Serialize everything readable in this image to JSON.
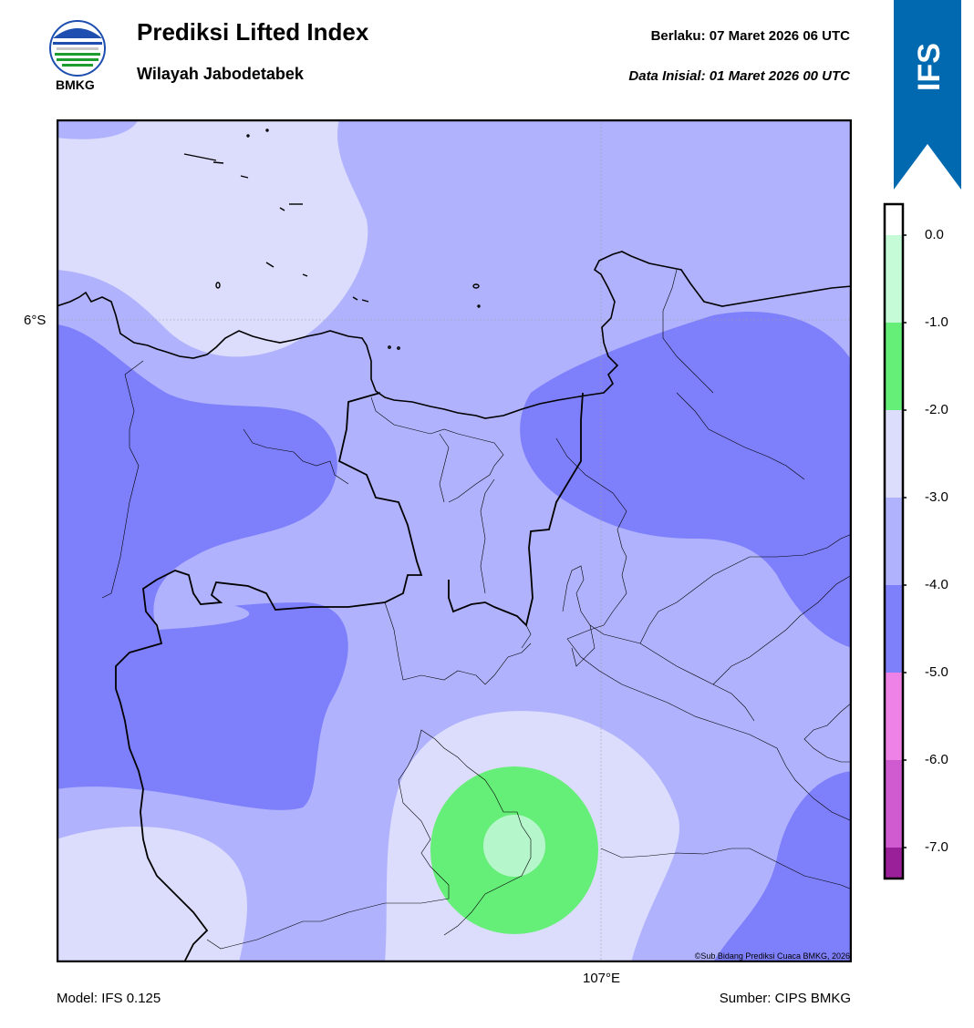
{
  "header": {
    "title": "Prediksi Lifted Index",
    "subtitle": "Wilayah Jabodetabek",
    "valid_label": "Berlaku:  07 Maret 2026 06 UTC",
    "initial_label": "Data Inisial:  01 Maret 2026 00 UTC",
    "logo_text": "BMKG"
  },
  "badge": {
    "text": "IFS",
    "color": "#0069b0"
  },
  "map": {
    "lat_label": "6°S",
    "lon_label": "107°E",
    "credit": "©Sub Bidang Prediksi Cuaca BMKG, 2026",
    "region_fill_colors": {
      "above_minus3": "#dcdcfc",
      "minus3_to_minus4": "#b0b2fd",
      "minus4_to_minus5": "#7e7ffb",
      "minus1_to_minus2": "#66ef78",
      "minus2_to_minus3_core": "#b5f6cb"
    }
  },
  "colorbar": {
    "ticks": [
      "0.0",
      "-1.0",
      "-2.0",
      "-3.0",
      "-4.0",
      "-5.0",
      "-6.0",
      "-7.0"
    ],
    "segments": [
      "#ffffff",
      "#c6fbd8",
      "#66ef78",
      "#dcdcfc",
      "#b0b2fd",
      "#7e7ffb",
      "#ef82e6",
      "#d05ad0",
      "#9a209a"
    ]
  },
  "footer": {
    "model": "Model: IFS 0.125",
    "source": "Sumber: CIPS BMKG"
  }
}
